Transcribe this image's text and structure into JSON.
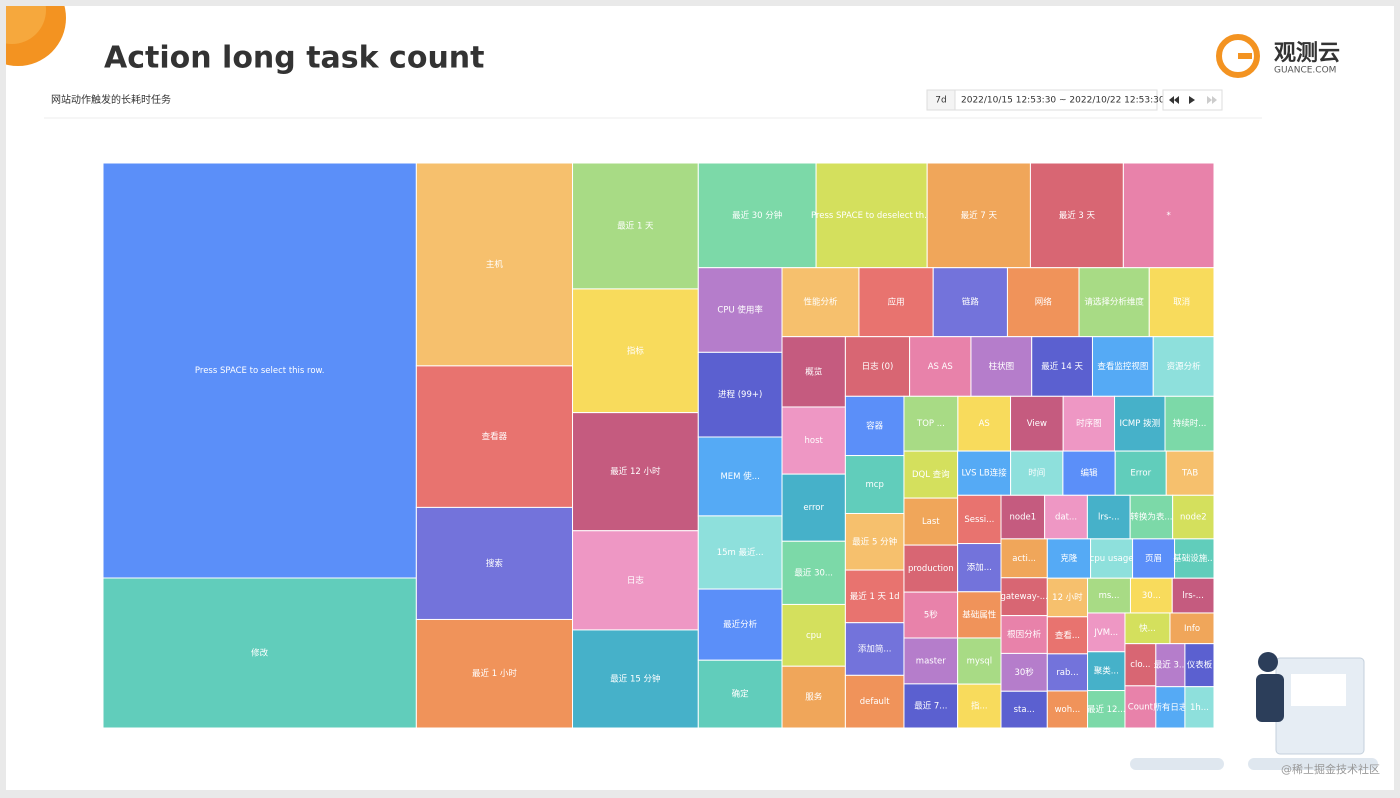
{
  "slide": {
    "title": "Action long task count",
    "logo": {
      "name": "观测云",
      "domain": "GUANCE.COM"
    },
    "watermark": "@稀土掘金技术社区"
  },
  "chart_data": {
    "type": "treemap",
    "subtitle": "网站动作触发的长耗时任务",
    "time_range": {
      "preset": "7d",
      "range": "2022/10/15 12:53:30 ~ 2022/10/22 12:53:30"
    },
    "categories": [
      "Press SPACE to select this row.",
      "修改",
      "主机",
      "查看器",
      "搜索",
      "最近 1 小时",
      "最近 1 天",
      "指标",
      "最近 12 小时",
      "日志",
      "最近 15 分钟",
      "最近 30 分钟",
      "Press SPACE to deselect th...",
      "最近 7 天",
      "最近 3 天",
      "*",
      "CPU 使用率",
      "进程 (99+)",
      "MEM 使...",
      "15m 最近...",
      "最近分析",
      "确定",
      "性能分析",
      "应用",
      "链路",
      "网络",
      "请选择分析维度",
      "取消",
      "概览",
      "host",
      "error",
      "最近 30...",
      "cpu",
      "服务",
      "日志 (0)",
      "AS AS",
      "柱状图",
      "最近 14 天",
      "查看监控视图",
      "资源分析",
      "容器",
      "mcp",
      "最近 5 分钟",
      "最近 1 天 1d",
      "添加简...",
      "default",
      "TOP ...",
      "AS",
      "View",
      "时序图",
      "ICMP 拨测",
      "持续时...",
      "DQL 查询",
      "Last",
      "production",
      "5秒",
      "master",
      "最近 7...",
      "LVS LB连接",
      "时间",
      "编辑",
      "Error",
      "TAB",
      "Sessi...",
      "添加...",
      "基础属性",
      "mysql",
      "指...",
      "node1",
      "dat...",
      "lrs-...",
      "转换为表...",
      "node2",
      "acti...",
      "gateway-...",
      "根因分析",
      "30秒",
      "sta...",
      "克隆",
      "cpu usage",
      "页眉",
      "基础设施...",
      "12 小时",
      "查看...",
      "rab...",
      "woh...",
      "ms...",
      "30...",
      "lrs-...",
      "JVM...",
      "聚类...",
      "最近 12...",
      "快...",
      "Info",
      "clo...",
      "Count",
      "最近 3...",
      "仪表板",
      "所有日志",
      "1h..."
    ],
    "values": [
      129900,
      46950,
      31650,
      22080,
      17480,
      16930,
      15820,
      15540,
      14840,
      12460,
      12320,
      12320,
      11620,
      10800,
      9720,
      9480,
      7080,
      7080,
      6600,
      6120,
      5950,
      5670,
      5300,
      5115,
      5115,
      4930,
      4840,
      4460,
      4450,
      4250,
      4250,
      4000,
      3910,
      3910,
      3825,
      3655,
      3620,
      3620,
      3620,
      3620,
      3465,
      3390,
      3310,
      3080,
      3080,
      3080,
      2950,
      2880,
      2880,
      2810,
      2760,
      2680,
      2520,
      2520,
      2520,
      2460,
      2460,
      2365,
      2340,
      2310,
      2310,
      2255,
      2110,
      2090,
      2090,
      2000,
      2000,
      1900,
      1900,
      1860,
      1860,
      1850,
      1800,
      1800,
      1750,
      1750,
      1750,
      1700,
      1700,
      1650,
      1650,
      1550,
      1550,
      1490,
      1490,
      1490,
      1490,
      1450,
      1450,
      1450,
      1450,
      1400,
      1380,
      1350,
      1300,
      1300,
      1250,
      1250,
      1200,
      1200
    ],
    "colors": [
      "#5b8ff9",
      "#61cdbb",
      "#f6c06d",
      "#e8736f",
      "#7373db",
      "#f0935a",
      "#a8db85",
      "#f8db5c",
      "#c55b7f",
      "#ee97c4",
      "#46b1c9",
      "#7cd9a8",
      "#d4e05d",
      "#f0a65a",
      "#d86673",
      "#e882aa",
      "#b57dcb",
      "#5b60d0",
      "#55aaf5",
      "#8ee0dc"
    ]
  }
}
